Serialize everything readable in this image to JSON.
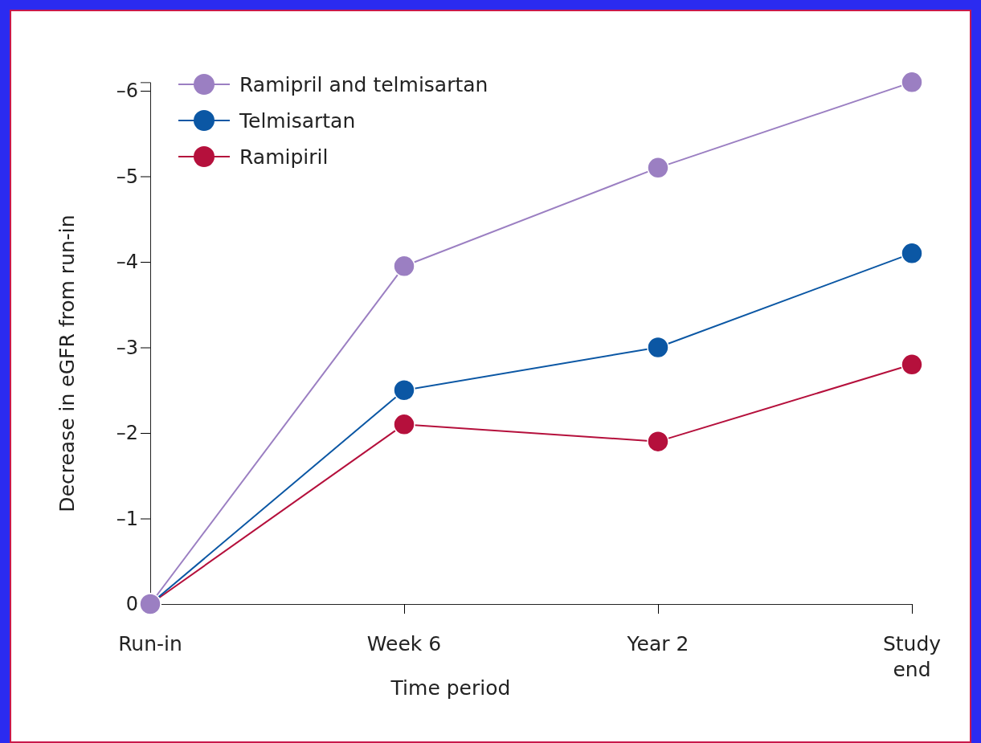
{
  "chart_data": {
    "type": "line",
    "xlabel": "Time period",
    "ylabel": "Decrease in eGFR from run-in",
    "categories": [
      "Run-in",
      "Week 6",
      "Year 2",
      "Study end"
    ],
    "ylim": [
      0,
      -6.1
    ],
    "yticks": [
      0,
      {
        "value": -1,
        "label": "–1"
      },
      {
        "value": -2,
        "label": "–2"
      },
      {
        "value": -3,
        "label": "–3"
      },
      {
        "value": -4,
        "label": "–4"
      },
      {
        "value": -5,
        "label": "–5"
      },
      {
        "value": -6,
        "label": "–6"
      }
    ],
    "series": [
      {
        "name": "Ramipril and telmisartan",
        "color": "#9b7fc2",
        "values": [
          0,
          -3.95,
          -5.1,
          -6.1
        ]
      },
      {
        "name": "Telmisartan",
        "color": "#0b57a4",
        "values": [
          0,
          -2.5,
          -3.0,
          -4.1
        ]
      },
      {
        "name": "Ramipiril",
        "color": "#b5103c",
        "values": [
          0,
          -2.1,
          -1.9,
          -2.8
        ]
      }
    ],
    "marker": "circle",
    "line_style": "solid",
    "legend": "top left",
    "grid": false
  }
}
